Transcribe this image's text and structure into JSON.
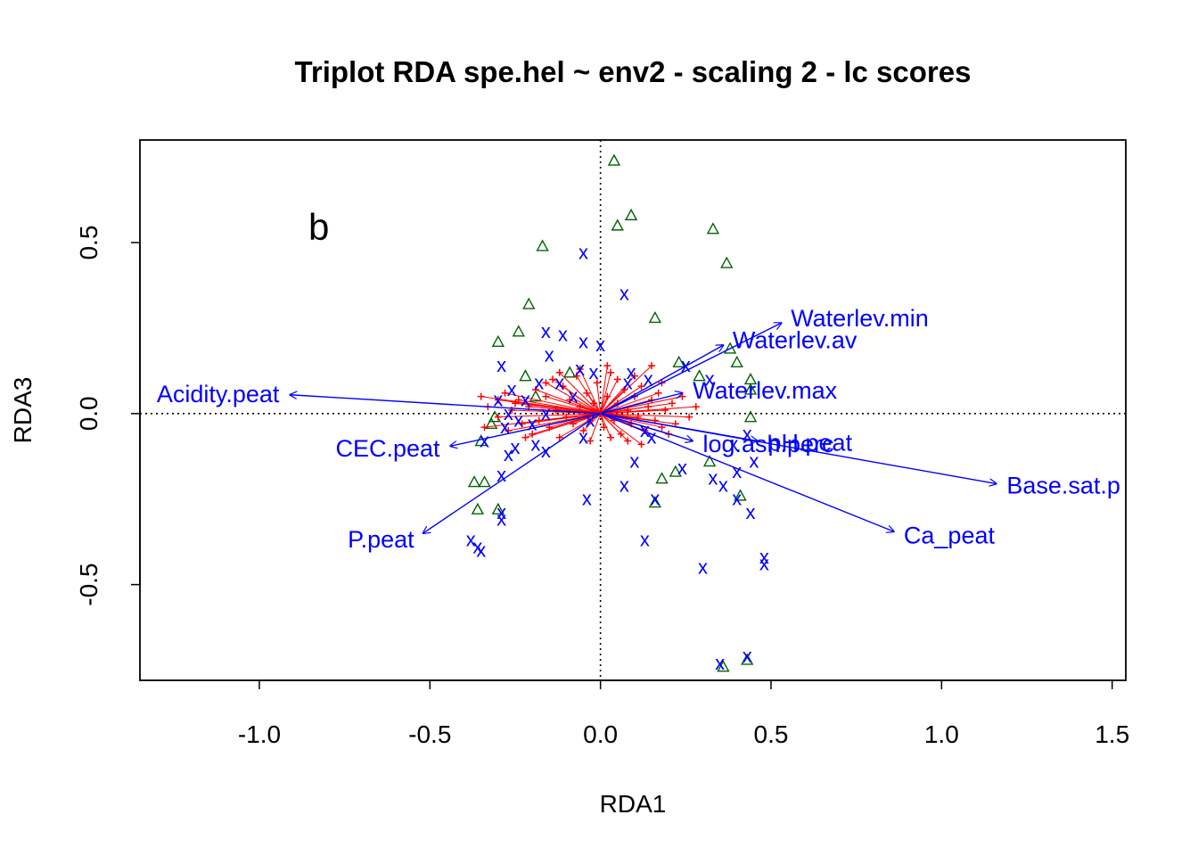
{
  "colors": {
    "sites": "#0000ff",
    "species": "#ff0000",
    "wa_scores": "#006400",
    "env_arrows": "#0000ff",
    "text": "#000000"
  },
  "chart_data": {
    "type": "scatter",
    "title": "Triplot RDA spe.hel ~ env2 - scaling 2 - lc scores",
    "panel_label": "b",
    "xlabel": "RDA1",
    "ylabel": "RDA3",
    "xlim": [
      -1.35,
      1.54
    ],
    "ylim": [
      -0.78,
      0.8
    ],
    "x_ticks": [
      {
        "value": -1.0,
        "label": "-1.0"
      },
      {
        "value": -0.5,
        "label": "-0.5"
      },
      {
        "value": 0.0,
        "label": "0.0"
      },
      {
        "value": 0.5,
        "label": "0.5"
      },
      {
        "value": 1.0,
        "label": "1.0"
      },
      {
        "value": 1.5,
        "label": "1.5"
      }
    ],
    "y_ticks": [
      {
        "value": -0.5,
        "label": "-0.5"
      },
      {
        "value": 0.0,
        "label": "0.0"
      },
      {
        "value": 0.5,
        "label": "0.5"
      }
    ],
    "reference_lines": {
      "x": 0,
      "y": 0,
      "style": "dotted"
    },
    "env_arrows": [
      {
        "name": "Acidity.peat",
        "x": -0.91,
        "y": 0.055
      },
      {
        "name": "CEC.peat",
        "x": -0.44,
        "y": -0.095
      },
      {
        "name": "P.peat",
        "x": -0.52,
        "y": -0.35
      },
      {
        "name": "Waterlev.min",
        "x": 0.53,
        "y": 0.265
      },
      {
        "name": "Waterlev.av",
        "x": 0.36,
        "y": 0.2
      },
      {
        "name": "Waterlev.max",
        "x": 0.24,
        "y": 0.06
      },
      {
        "name": "log.ash.perc",
        "x": 0.27,
        "y": -0.08
      },
      {
        "name": "pH.peat",
        "x": 0.46,
        "y": -0.08
      },
      {
        "name": "Base.sat.p",
        "x": 1.16,
        "y": -0.205
      },
      {
        "name": "Ca_peat",
        "x": 0.86,
        "y": -0.345
      }
    ],
    "species_series": {
      "name": "species",
      "marker": "+",
      "points": [
        [
          -0.35,
          0.05
        ],
        [
          -0.34,
          -0.04
        ],
        [
          -0.33,
          0.02
        ],
        [
          -0.3,
          -0.01
        ],
        [
          -0.28,
          0.06
        ],
        [
          -0.27,
          -0.05
        ],
        [
          -0.26,
          0.01
        ],
        [
          -0.24,
          0.04
        ],
        [
          -0.23,
          -0.03
        ],
        [
          -0.21,
          0.02
        ],
        [
          -0.2,
          -0.06
        ],
        [
          -0.19,
          0.07
        ],
        [
          -0.18,
          -0.02
        ],
        [
          -0.16,
          0.05
        ],
        [
          -0.15,
          -0.04
        ],
        [
          -0.14,
          0.1
        ],
        [
          -0.13,
          0.01
        ],
        [
          -0.12,
          -0.07
        ],
        [
          -0.11,
          0.08
        ],
        [
          -0.1,
          -0.01
        ],
        [
          -0.09,
          0.04
        ],
        [
          -0.08,
          -0.03
        ],
        [
          -0.07,
          0.11
        ],
        [
          -0.06,
          0.02
        ],
        [
          -0.05,
          -0.05
        ],
        [
          -0.04,
          0.06
        ],
        [
          -0.03,
          -0.02
        ],
        [
          -0.02,
          0.03
        ],
        [
          -0.01,
          0.09
        ],
        [
          0.0,
          0.0
        ],
        [
          0.01,
          -0.04
        ],
        [
          0.02,
          0.05
        ],
        [
          0.03,
          0.12
        ],
        [
          0.04,
          -0.02
        ],
        [
          0.05,
          0.03
        ],
        [
          0.06,
          -0.06
        ],
        [
          0.07,
          0.07
        ],
        [
          0.08,
          0.01
        ],
        [
          0.09,
          -0.03
        ],
        [
          0.1,
          0.05
        ],
        [
          0.11,
          -0.01
        ],
        [
          0.12,
          0.08
        ],
        [
          0.13,
          -0.05
        ],
        [
          0.14,
          0.02
        ],
        [
          0.15,
          0.04
        ],
        [
          0.16,
          -0.02
        ],
        [
          0.17,
          0.06
        ],
        [
          0.18,
          -0.04
        ],
        [
          0.19,
          0.01
        ],
        [
          0.21,
          0.03
        ],
        [
          0.22,
          -0.03
        ],
        [
          0.24,
          0.05
        ],
        [
          0.26,
          -0.01
        ],
        [
          0.28,
          0.02
        ],
        [
          0.15,
          0.14
        ],
        [
          0.02,
          0.14
        ],
        [
          -0.06,
          0.13
        ],
        [
          -0.16,
          0.09
        ],
        [
          0.08,
          -0.08
        ],
        [
          0.12,
          -0.09
        ],
        [
          -0.22,
          -0.07
        ],
        [
          -0.3,
          0.04
        ],
        [
          0.2,
          -0.06
        ],
        [
          -0.12,
          0.12
        ],
        [
          0.05,
          0.1
        ],
        [
          -0.03,
          -0.08
        ],
        [
          0.1,
          0.11
        ],
        [
          -0.25,
          0.03
        ],
        [
          0.18,
          0.09
        ],
        [
          0.03,
          -0.07
        ]
      ]
    },
    "sites_series": {
      "name": "sites",
      "marker": "x",
      "points": [
        [
          -0.05,
          0.47
        ],
        [
          0.07,
          0.35
        ],
        [
          -0.16,
          0.24
        ],
        [
          -0.11,
          0.23
        ],
        [
          -0.05,
          0.21
        ],
        [
          0.0,
          0.2
        ],
        [
          -0.15,
          0.17
        ],
        [
          -0.29,
          0.14
        ],
        [
          -0.06,
          0.13
        ],
        [
          0.25,
          0.14
        ],
        [
          0.09,
          0.12
        ],
        [
          0.32,
          0.1
        ],
        [
          -0.02,
          0.12
        ],
        [
          -0.18,
          0.09
        ],
        [
          -0.12,
          0.09
        ],
        [
          -0.26,
          0.07
        ],
        [
          -0.3,
          0.04
        ],
        [
          -0.22,
          0.04
        ],
        [
          -0.08,
          0.05
        ],
        [
          -0.27,
          0.0
        ],
        [
          -0.16,
          0.0
        ],
        [
          -0.24,
          -0.02
        ],
        [
          -0.2,
          -0.03
        ],
        [
          -0.28,
          -0.04
        ],
        [
          -0.03,
          -0.02
        ],
        [
          -0.34,
          -0.08
        ],
        [
          -0.19,
          -0.09
        ],
        [
          -0.25,
          -0.1
        ],
        [
          -0.16,
          -0.11
        ],
        [
          -0.27,
          -0.12
        ],
        [
          -0.29,
          -0.18
        ],
        [
          -0.05,
          -0.07
        ],
        [
          0.13,
          -0.05
        ],
        [
          0.15,
          -0.07
        ],
        [
          0.1,
          -0.14
        ],
        [
          0.24,
          -0.16
        ],
        [
          0.33,
          -0.19
        ],
        [
          0.36,
          -0.21
        ],
        [
          0.4,
          -0.17
        ],
        [
          0.45,
          -0.14
        ],
        [
          0.43,
          -0.06
        ],
        [
          0.39,
          -0.09
        ],
        [
          0.07,
          -0.21
        ],
        [
          0.16,
          -0.25
        ],
        [
          0.4,
          -0.25
        ],
        [
          0.44,
          -0.29
        ],
        [
          -0.04,
          -0.25
        ],
        [
          -0.29,
          -0.29
        ],
        [
          -0.29,
          -0.31
        ],
        [
          -0.38,
          -0.37
        ],
        [
          -0.36,
          -0.39
        ],
        [
          -0.35,
          -0.4
        ],
        [
          0.13,
          -0.37
        ],
        [
          0.3,
          -0.45
        ],
        [
          0.48,
          -0.42
        ],
        [
          0.48,
          -0.44
        ],
        [
          0.43,
          -0.71
        ],
        [
          0.35,
          -0.73
        ],
        [
          0.14,
          0.1
        ],
        [
          0.08,
          0.09
        ]
      ]
    },
    "wa_series": {
      "name": "wa scores",
      "marker": "triangle",
      "points": [
        [
          0.04,
          0.74
        ],
        [
          0.09,
          0.58
        ],
        [
          0.05,
          0.55
        ],
        [
          0.33,
          0.54
        ],
        [
          -0.17,
          0.49
        ],
        [
          0.37,
          0.44
        ],
        [
          -0.21,
          0.32
        ],
        [
          0.16,
          0.28
        ],
        [
          -0.24,
          0.24
        ],
        [
          -0.3,
          0.21
        ],
        [
          0.38,
          0.19
        ],
        [
          0.4,
          0.15
        ],
        [
          0.23,
          0.15
        ],
        [
          0.44,
          0.1
        ],
        [
          0.29,
          0.11
        ],
        [
          -0.22,
          0.11
        ],
        [
          -0.09,
          0.12
        ],
        [
          0.44,
          0.07
        ],
        [
          -0.19,
          0.05
        ],
        [
          0.44,
          -0.01
        ],
        [
          -0.31,
          -0.01
        ],
        [
          -0.32,
          -0.03
        ],
        [
          0.22,
          -0.17
        ],
        [
          0.18,
          -0.19
        ],
        [
          -0.34,
          -0.2
        ],
        [
          -0.37,
          -0.2
        ],
        [
          -0.36,
          -0.28
        ],
        [
          -0.3,
          -0.28
        ],
        [
          0.16,
          -0.26
        ],
        [
          0.32,
          -0.14
        ],
        [
          0.41,
          -0.24
        ],
        [
          0.36,
          -0.74
        ],
        [
          0.43,
          -0.72
        ],
        [
          -0.35,
          -0.08
        ]
      ]
    }
  }
}
